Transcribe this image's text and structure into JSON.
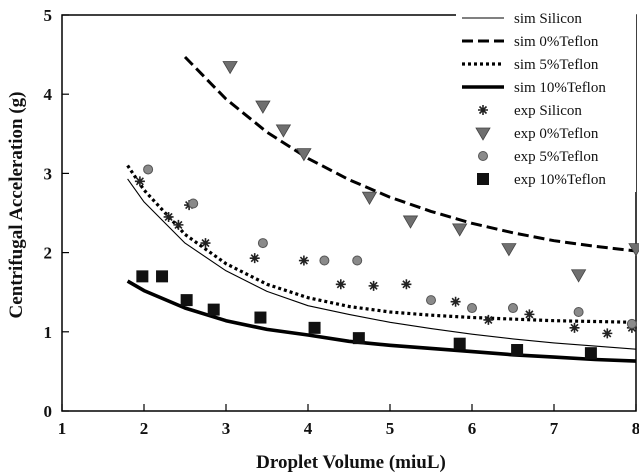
{
  "chart_data": {
    "type": "line",
    "xlabel": "Droplet Volume (miuL)",
    "ylabel": "Centrifugal Acceleration (g)",
    "xlim": [
      1,
      8
    ],
    "ylim": [
      0,
      5
    ],
    "x_ticks": [
      "1",
      "2",
      "3",
      "4",
      "5",
      "6",
      "7",
      "8"
    ],
    "y_ticks": [
      "0",
      "1",
      "2",
      "3",
      "4",
      "5"
    ],
    "grid": false,
    "legend_position": "top-right",
    "series": [
      {
        "name": "sim Silicon",
        "kind": "line",
        "style": "thin-solid",
        "x": [
          1.8,
          2.0,
          2.5,
          3.0,
          3.5,
          4.0,
          4.5,
          5.0,
          5.5,
          6.0,
          6.5,
          7.0,
          7.5,
          8.0
        ],
        "y": [
          2.93,
          2.64,
          2.12,
          1.77,
          1.51,
          1.33,
          1.22,
          1.12,
          1.04,
          0.97,
          0.91,
          0.86,
          0.82,
          0.78
        ]
      },
      {
        "name": "sim 0%Teflon",
        "kind": "line",
        "style": "long-dash",
        "x": [
          2.5,
          3.0,
          3.5,
          4.0,
          4.5,
          5.0,
          5.5,
          6.0,
          6.5,
          7.0,
          7.5,
          8.0
        ],
        "y": [
          4.47,
          3.94,
          3.52,
          3.19,
          2.92,
          2.7,
          2.52,
          2.37,
          2.25,
          2.15,
          2.08,
          2.02
        ]
      },
      {
        "name": "sim 5%Teflon",
        "kind": "line",
        "style": "dotted",
        "x": [
          1.8,
          2.0,
          2.5,
          3.0,
          3.5,
          4.0,
          4.5,
          5.0,
          5.5,
          6.0,
          6.5,
          7.0,
          7.5,
          8.0
        ],
        "y": [
          3.1,
          2.79,
          2.23,
          1.86,
          1.6,
          1.43,
          1.32,
          1.25,
          1.21,
          1.18,
          1.16,
          1.14,
          1.13,
          1.12
        ]
      },
      {
        "name": "sim 10%Teflon",
        "kind": "line",
        "style": "thick-solid",
        "x": [
          1.8,
          2.0,
          2.5,
          3.0,
          3.5,
          4.0,
          4.5,
          5.0,
          5.5,
          6.0,
          6.5,
          7.0,
          7.5,
          8.0
        ],
        "y": [
          1.64,
          1.52,
          1.3,
          1.14,
          1.03,
          0.96,
          0.88,
          0.83,
          0.79,
          0.75,
          0.71,
          0.68,
          0.65,
          0.63
        ]
      },
      {
        "name": "exp Silicon",
        "kind": "marker",
        "marker": "star",
        "x": [
          1.95,
          2.3,
          2.42,
          2.55,
          2.75,
          3.35,
          3.95,
          4.4,
          4.8,
          5.2,
          5.8,
          6.2,
          6.7,
          7.25,
          7.65,
          7.95
        ],
        "y": [
          2.9,
          2.45,
          2.35,
          2.6,
          2.12,
          1.93,
          1.9,
          1.6,
          1.58,
          1.6,
          1.38,
          1.15,
          1.22,
          1.05,
          0.98,
          1.05
        ]
      },
      {
        "name": "exp 0%Teflon",
        "kind": "marker",
        "marker": "triangle-down",
        "x": [
          3.05,
          3.45,
          3.7,
          3.95,
          4.75,
          5.25,
          5.85,
          6.45,
          7.3,
          8.0
        ],
        "y": [
          4.35,
          3.85,
          3.55,
          3.25,
          2.7,
          2.4,
          2.3,
          2.05,
          1.72,
          2.05
        ]
      },
      {
        "name": "exp 5%Teflon",
        "kind": "marker",
        "marker": "circle",
        "x": [
          2.05,
          2.6,
          3.45,
          4.2,
          4.6,
          5.5,
          6.0,
          6.5,
          7.3,
          7.95
        ],
        "y": [
          3.05,
          2.62,
          2.12,
          1.9,
          1.9,
          1.4,
          1.3,
          1.3,
          1.25,
          1.1
        ]
      },
      {
        "name": "exp 10%Teflon",
        "kind": "marker",
        "marker": "square",
        "x": [
          1.98,
          2.22,
          2.52,
          2.85,
          3.42,
          4.08,
          4.62,
          5.85,
          6.55,
          7.45
        ],
        "y": [
          1.7,
          1.7,
          1.4,
          1.28,
          1.18,
          1.05,
          0.92,
          0.85,
          0.77,
          0.73
        ]
      }
    ]
  }
}
